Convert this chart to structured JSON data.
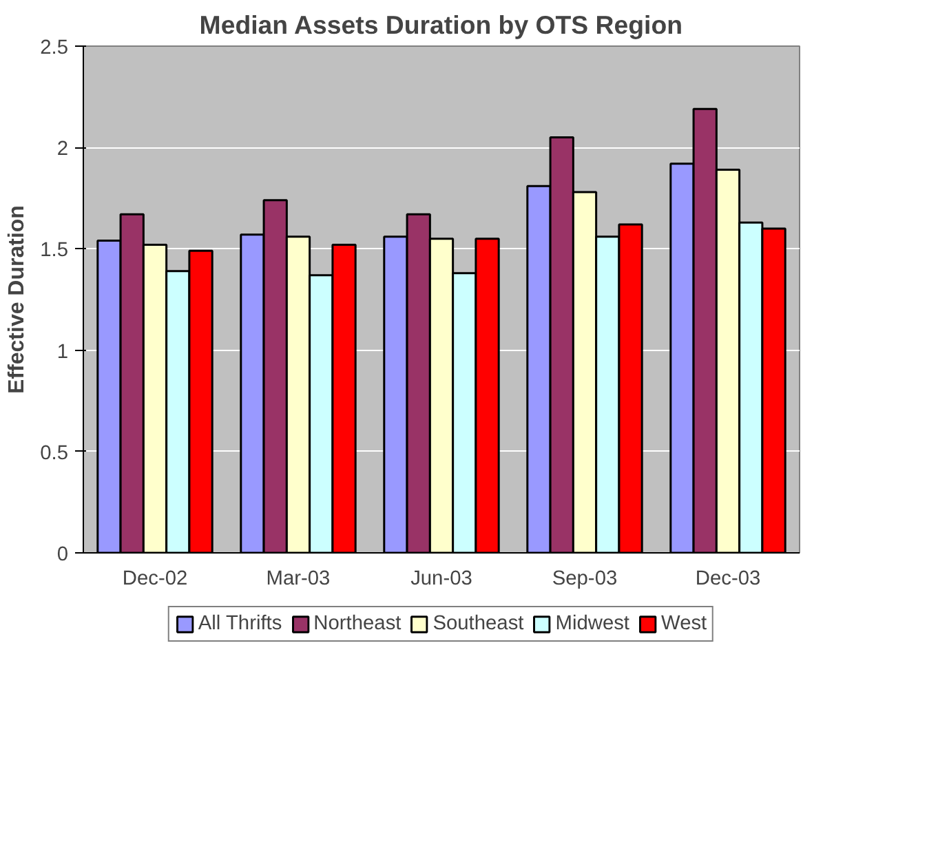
{
  "chart_data": {
    "type": "bar",
    "title": "Median Assets Duration by OTS Region",
    "ylabel": "Effective Duration",
    "categories": [
      "Dec-02",
      "Mar-03",
      "Jun-03",
      "Sep-03",
      "Dec-03"
    ],
    "series": [
      {
        "name": "All Thrifts",
        "color": "#9999ff",
        "values": [
          1.54,
          1.57,
          1.56,
          1.81,
          1.92
        ]
      },
      {
        "name": "Northeast",
        "color": "#993366",
        "values": [
          1.67,
          1.74,
          1.67,
          2.05,
          2.19
        ]
      },
      {
        "name": "Southeast",
        "color": "#ffffcc",
        "values": [
          1.52,
          1.56,
          1.55,
          1.78,
          1.89
        ]
      },
      {
        "name": "Midwest",
        "color": "#ccffff",
        "values": [
          1.39,
          1.37,
          1.38,
          1.56,
          1.63
        ]
      },
      {
        "name": "West",
        "color": "#ff0000",
        "values": [
          1.49,
          1.52,
          1.55,
          1.62,
          1.6
        ]
      }
    ],
    "ylim": [
      0,
      2.5
    ],
    "yticks": [
      0,
      0.5,
      1,
      1.5,
      2,
      2.5
    ],
    "grid": "y",
    "legend": "bottom"
  }
}
